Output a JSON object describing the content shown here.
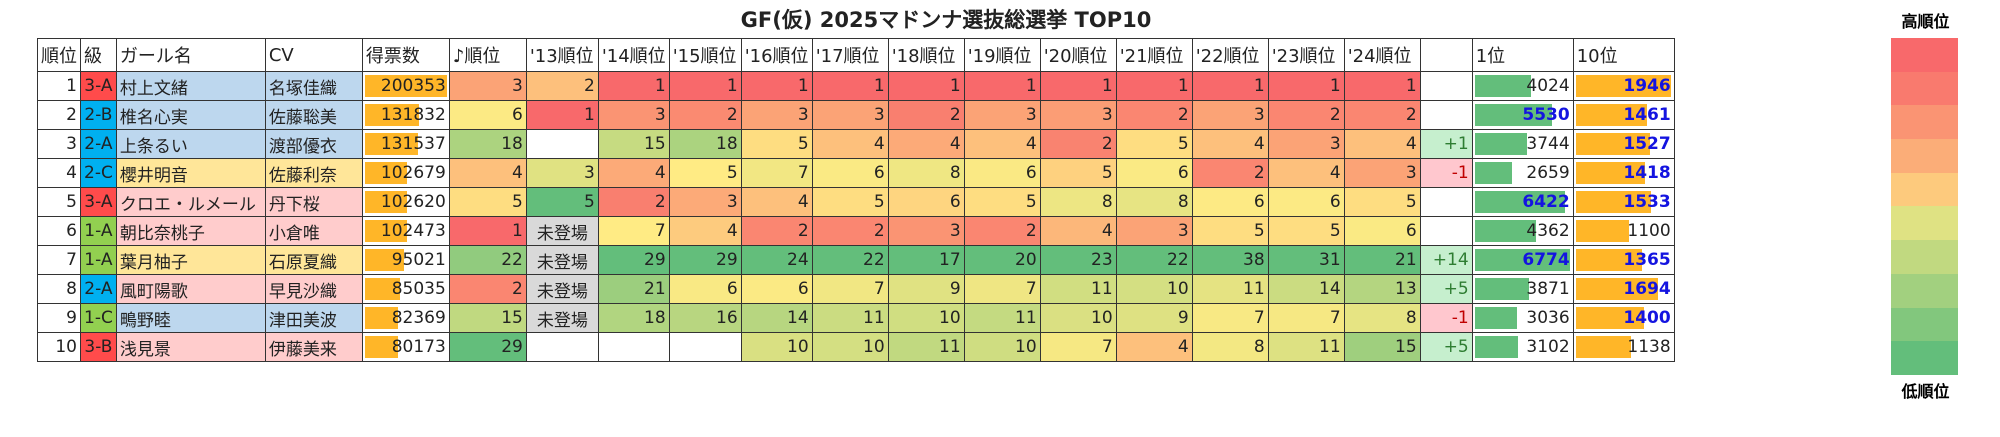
{
  "title": "GF(仮) 2025マドンナ選抜総選挙 TOP10",
  "headers": [
    "順位",
    "級",
    "ガール名",
    "CV",
    "得票数",
    "♪順位",
    "'13順位",
    "'14順位",
    "'15順位",
    "'16順位",
    "'17順位",
    "'18順位",
    "'19順位",
    "'20順位",
    "'21順位",
    "'22順位",
    "'23順位",
    "'24順位",
    "",
    "1位",
    "10位"
  ],
  "legend": {
    "top": "高順位",
    "bottom": "低順位",
    "colors": [
      "#F8696B",
      "#F97A6E",
      "#FA9473",
      "#FBAD78",
      "#FDCA7D",
      "#FFEB84",
      "#DFE283",
      "#C1D980",
      "#A2D07F",
      "#82C77D",
      "#63BE7B"
    ]
  },
  "colors": {
    "high": "#F8696B",
    "mid": "#FFEB84",
    "low": "#63BE7B",
    "votes_bar": "#FFB628",
    "first_bar": "#63BE7B",
    "tenth_bar": "#FFB628",
    "class_3": "#FF4B4B",
    "class_2": "#00B0F0",
    "class_1": "#92D050",
    "row_blue": "#BDD7EE",
    "row_yellow": "#FFE699",
    "row_pink": "#FFCCCC"
  },
  "rows": [
    {
      "rank": "1",
      "cls": "3-A",
      "name": "村上文緒",
      "cv": "名塚佳織",
      "votes": "200353",
      "ranks": [
        "3",
        "2",
        "1",
        "1",
        "1",
        "1",
        "1",
        "1",
        "1",
        "1",
        "1",
        "1",
        "1"
      ],
      "diff": "",
      "first": "4024",
      "tenth": "1946",
      "row": "blue"
    },
    {
      "rank": "2",
      "cls": "2-B",
      "name": "椎名心実",
      "cv": "佐藤聡美",
      "votes": "131832",
      "ranks": [
        "6",
        "1",
        "3",
        "2",
        "3",
        "3",
        "2",
        "3",
        "3",
        "2",
        "3",
        "2",
        "2"
      ],
      "diff": "",
      "first": "5530",
      "tenth": "1461",
      "row": "blue"
    },
    {
      "rank": "3",
      "cls": "2-A",
      "name": "上条るい",
      "cv": "渡部優衣",
      "votes": "131537",
      "ranks": [
        "18",
        "",
        "15",
        "18",
        "5",
        "4",
        "4",
        "4",
        "2",
        "5",
        "4",
        "3",
        "4"
      ],
      "diff": "+1",
      "first": "3744",
      "tenth": "1527",
      "row": "blue"
    },
    {
      "rank": "4",
      "cls": "2-C",
      "name": "櫻井明音",
      "cv": "佐藤利奈",
      "votes": "102679",
      "ranks": [
        "4",
        "3",
        "4",
        "5",
        "7",
        "6",
        "8",
        "6",
        "5",
        "6",
        "2",
        "4",
        "3"
      ],
      "diff": "-1",
      "first": "2659",
      "tenth": "1418",
      "row": "yellow"
    },
    {
      "rank": "5",
      "cls": "3-A",
      "name": "クロエ・ルメール",
      "cv": "丹下桜",
      "votes": "102620",
      "ranks": [
        "5",
        "5",
        "2",
        "3",
        "4",
        "5",
        "6",
        "5",
        "8",
        "8",
        "6",
        "6",
        "5"
      ],
      "diff": "",
      "first": "6422",
      "tenth": "1533",
      "row": "pink"
    },
    {
      "rank": "6",
      "cls": "1-A",
      "name": "朝比奈桃子",
      "cv": "小倉唯",
      "votes": "102473",
      "ranks": [
        "1",
        "未登場",
        "7",
        "4",
        "2",
        "2",
        "3",
        "2",
        "4",
        "3",
        "5",
        "5",
        "6"
      ],
      "diff": "",
      "first": "4362",
      "tenth": "1100",
      "row": "pink"
    },
    {
      "rank": "7",
      "cls": "1-A",
      "name": "葉月柚子",
      "cv": "石原夏織",
      "votes": "95021",
      "ranks": [
        "22",
        "未登場",
        "29",
        "29",
        "24",
        "22",
        "17",
        "20",
        "23",
        "22",
        "38",
        "31",
        "21"
      ],
      "diff": "+14",
      "first": "6774",
      "tenth": "1365",
      "row": "yellow"
    },
    {
      "rank": "8",
      "cls": "2-A",
      "name": "風町陽歌",
      "cv": "早見沙織",
      "votes": "85035",
      "ranks": [
        "2",
        "未登場",
        "21",
        "6",
        "6",
        "7",
        "9",
        "7",
        "11",
        "10",
        "11",
        "14",
        "13"
      ],
      "diff": "+5",
      "first": "3871",
      "tenth": "1694",
      "row": "pink"
    },
    {
      "rank": "9",
      "cls": "1-C",
      "name": "鴫野睦",
      "cv": "津田美波",
      "votes": "82369",
      "ranks": [
        "15",
        "未登場",
        "18",
        "16",
        "14",
        "11",
        "10",
        "11",
        "10",
        "9",
        "7",
        "7",
        "8"
      ],
      "diff": "-1",
      "first": "3036",
      "tenth": "1400",
      "row": "blue"
    },
    {
      "rank": "10",
      "cls": "3-B",
      "name": "浅見景",
      "cv": "伊藤美来",
      "votes": "80173",
      "ranks": [
        "29",
        "",
        "",
        "",
        "10",
        "10",
        "11",
        "10",
        "7",
        "4",
        "8",
        "11",
        "15"
      ],
      "diff": "+5",
      "first": "3102",
      "tenth": "1138",
      "row": "pink"
    }
  ]
}
